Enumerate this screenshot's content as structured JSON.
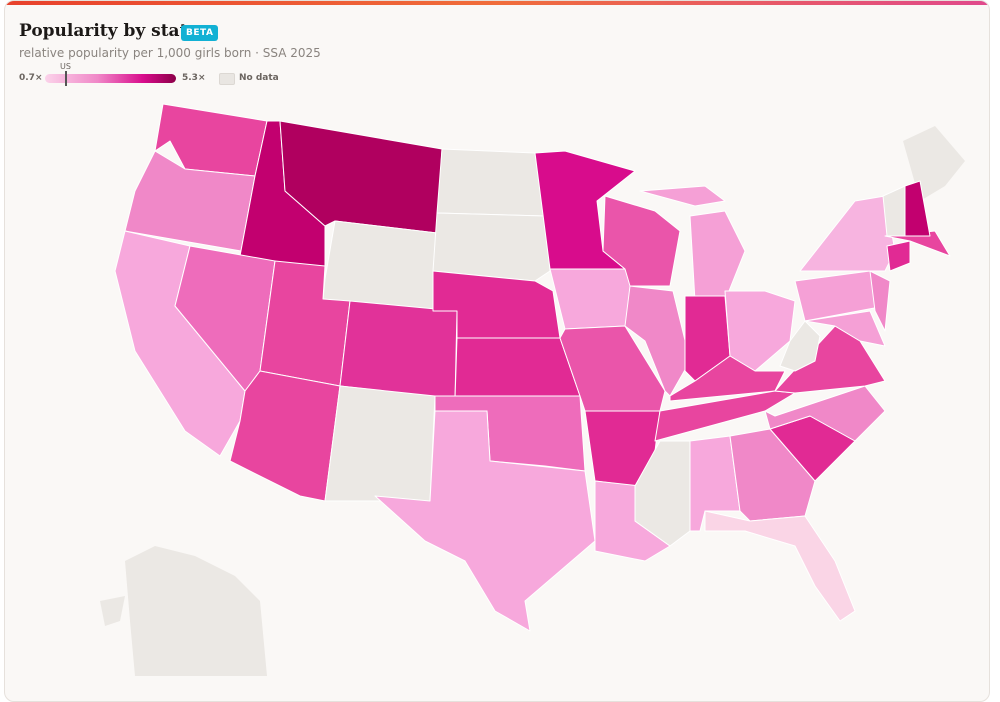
{
  "header": {
    "title": "Popularity by state",
    "badge": "BETA",
    "subtitle": "relative popularity per 1,000 girls born · SSA 2025"
  },
  "legend": {
    "min_label": "0.7×",
    "marker_label": "US",
    "max_label": "5.3×",
    "no_data_label": "No data"
  }
}
